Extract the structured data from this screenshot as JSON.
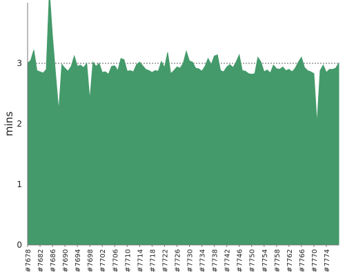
{
  "chart_data": {
    "type": "area",
    "title": "",
    "xlabel": "",
    "ylabel": "mins",
    "ylim": [
      0,
      4
    ],
    "yticks": [
      0,
      1,
      2,
      3
    ],
    "grid": "horizontal-dashed",
    "x_start": 7678,
    "x_end": 7777,
    "x_tick_labels": [
      "#7678",
      "#7682",
      "#7686",
      "#7690",
      "#7694",
      "#7698",
      "#7702",
      "#7706",
      "#7710",
      "#7714",
      "#7718",
      "#7722",
      "#7726",
      "#7730",
      "#7734",
      "#7738",
      "#7742",
      "#7746",
      "#7750",
      "#7754",
      "#7758",
      "#7762",
      "#7766",
      "#7770",
      "#7774"
    ],
    "values": [
      3.0,
      3.05,
      3.22,
      2.88,
      2.86,
      2.84,
      2.9,
      4.2,
      3.45,
      2.82,
      2.22,
      2.98,
      2.92,
      2.87,
      2.95,
      3.12,
      2.95,
      2.97,
      2.93,
      3.0,
      2.4,
      3.02,
      2.95,
      3.0,
      2.85,
      2.86,
      2.82,
      2.95,
      2.96,
      2.88,
      3.08,
      3.06,
      2.87,
      2.88,
      2.86,
      2.98,
      3.02,
      2.96,
      2.9,
      2.88,
      2.85,
      2.88,
      2.87,
      3.03,
      2.93,
      3.18,
      2.83,
      2.88,
      2.94,
      2.92,
      3.0,
      3.2,
      3.04,
      3.02,
      2.92,
      2.91,
      2.87,
      2.95,
      3.08,
      2.98,
      3.12,
      3.14,
      2.88,
      2.86,
      2.94,
      2.98,
      2.93,
      3.02,
      3.14,
      2.88,
      2.87,
      2.83,
      2.82,
      2.83,
      3.1,
      3.02,
      2.86,
      2.89,
      2.84,
      2.97,
      2.91,
      2.9,
      2.94,
      2.88,
      2.9,
      2.86,
      2.92,
      3.02,
      3.1,
      2.93,
      2.88,
      2.86,
      2.83,
      2.0,
      2.88,
      2.97,
      2.85,
      2.9,
      2.9,
      2.92,
      3.0
    ],
    "colors": {
      "area": "#449a6a",
      "grid": "#5a5a5a",
      "axis": "#777777",
      "text": "#222222"
    }
  }
}
